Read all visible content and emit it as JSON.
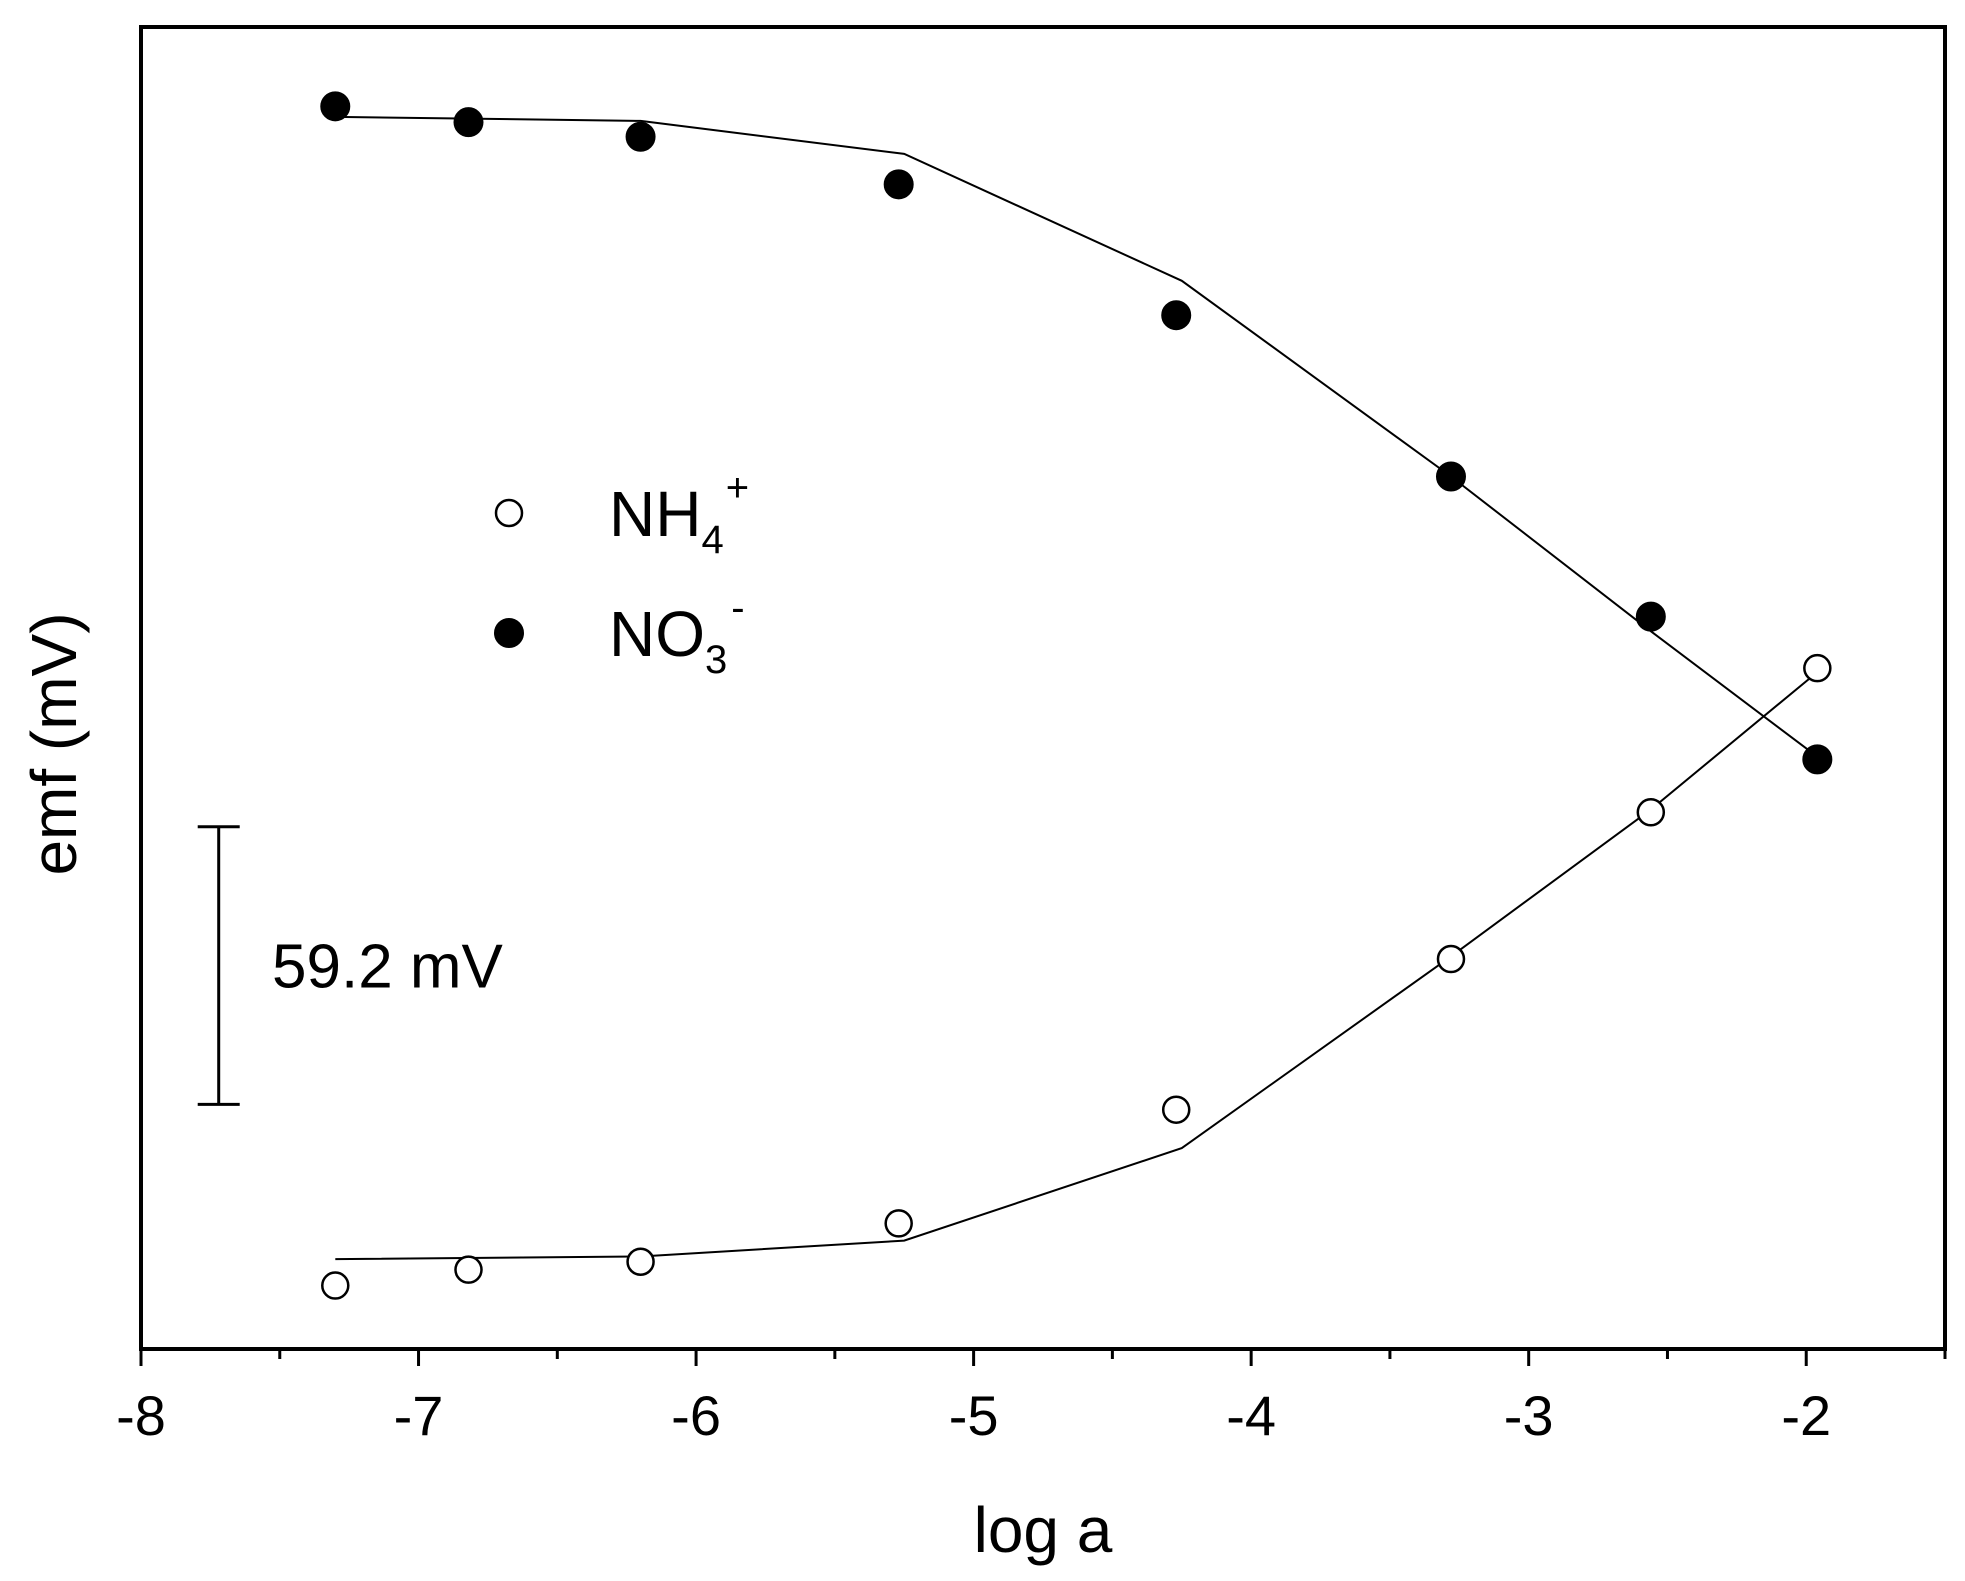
{
  "chart_data": {
    "type": "scatter",
    "xlabel": "log a",
    "ylabel": "emf (mV)",
    "xlim": [
      -8,
      -1.5
    ],
    "ylim": [
      0,
      1000
    ],
    "x_ticks": [
      -8,
      -7,
      -6,
      -5,
      -4,
      -3,
      -2
    ],
    "x_tick_labels": [
      "-8",
      "-7",
      "-6",
      "-5",
      "-4",
      "-3",
      "-2"
    ],
    "x_minor_ticks": [
      -7.5,
      -6.5,
      -5.5,
      -4.5,
      -3.5,
      -2.5,
      -1.5
    ],
    "y_ticks_shown": false,
    "grid": false,
    "legend": {
      "position": "middle-left"
    },
    "series": [
      {
        "name": "NH4+",
        "label_main": "NH",
        "label_sub": "4",
        "label_sup": "+",
        "marker": "open-circle",
        "color": "#000000",
        "points": [
          {
            "x": -7.3,
            "y": 48
          },
          {
            "x": -6.82,
            "y": 60
          },
          {
            "x": -6.2,
            "y": 66
          },
          {
            "x": -5.27,
            "y": 95
          },
          {
            "x": -4.27,
            "y": 181
          },
          {
            "x": -3.28,
            "y": 295
          },
          {
            "x": -2.56,
            "y": 406
          },
          {
            "x": -1.96,
            "y": 515
          }
        ],
        "fit": [
          {
            "x": -7.3,
            "y": 68
          },
          {
            "x": -6.2,
            "y": 70
          },
          {
            "x": -5.25,
            "y": 82
          },
          {
            "x": -4.25,
            "y": 152
          },
          {
            "x": -3.28,
            "y": 297
          },
          {
            "x": -2.56,
            "y": 408
          },
          {
            "x": -1.96,
            "y": 512
          }
        ]
      },
      {
        "name": "NO3-",
        "label_main": "NO",
        "label_sub": "3",
        "label_sup": "-",
        "marker": "filled-circle",
        "color": "#000000",
        "points": [
          {
            "x": -7.3,
            "y": 940
          },
          {
            "x": -6.82,
            "y": 928
          },
          {
            "x": -6.2,
            "y": 917
          },
          {
            "x": -5.27,
            "y": 881
          },
          {
            "x": -4.27,
            "y": 782
          },
          {
            "x": -3.28,
            "y": 660
          },
          {
            "x": -2.56,
            "y": 554
          },
          {
            "x": -1.96,
            "y": 446
          }
        ],
        "fit": [
          {
            "x": -7.3,
            "y": 932
          },
          {
            "x": -6.2,
            "y": 929
          },
          {
            "x": -5.25,
            "y": 904
          },
          {
            "x": -4.25,
            "y": 808
          },
          {
            "x": -3.28,
            "y": 660
          },
          {
            "x": -2.56,
            "y": 543
          },
          {
            "x": -1.96,
            "y": 448
          }
        ]
      }
    ],
    "scale_bar": {
      "label": "59.2 mV",
      "x": -7.72,
      "y_from": 185,
      "y_to": 395
    }
  }
}
